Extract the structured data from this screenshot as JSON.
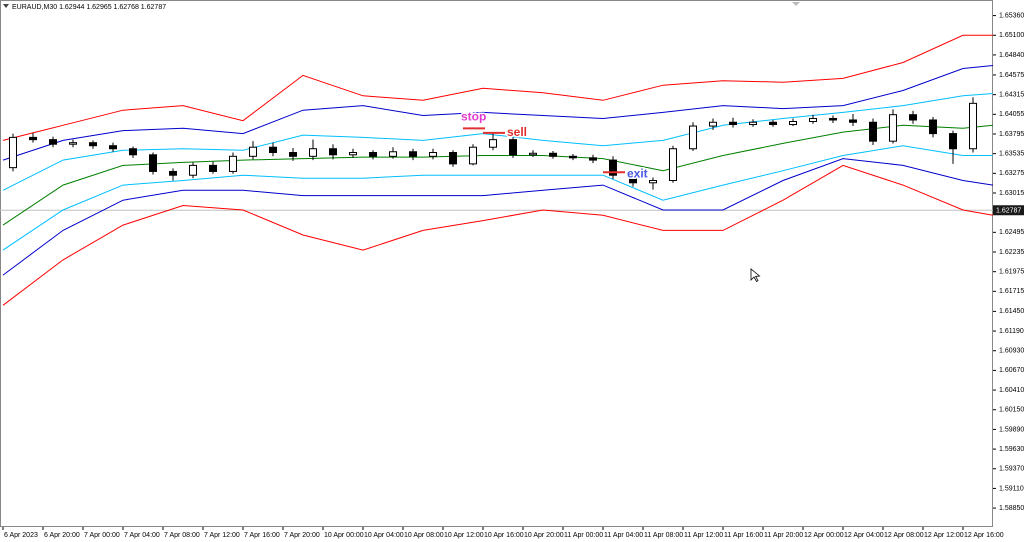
{
  "chart_data": {
    "type": "candlestick",
    "title": "EURAUD,M30  1.62944 1.62965 1.62768 1.62787",
    "xlim": [
      -0.3,
      99
    ],
    "ylim": [
      1.586,
      1.655
    ],
    "xticks": [
      {
        "value": 0,
        "label": "6 Apr 2023"
      },
      {
        "value": 4,
        "label": "6 Apr 20:00"
      },
      {
        "value": 8,
        "label": "7 Apr 00:00"
      },
      {
        "value": 12,
        "label": "7 Apr 04:00"
      },
      {
        "value": 16,
        "label": "7 Apr 08:00"
      },
      {
        "value": 20,
        "label": "7 Apr 12:00"
      },
      {
        "value": 24,
        "label": "7 Apr 16:00"
      },
      {
        "value": 28,
        "label": "7 Apr 20:00"
      },
      {
        "value": 32,
        "label": "10 Apr 00:00"
      },
      {
        "value": 36,
        "label": "10 Apr 04:00"
      },
      {
        "value": 40,
        "label": "10 Apr 08:00"
      },
      {
        "value": 44,
        "label": "10 Apr 12:00"
      },
      {
        "value": 48,
        "label": "10 Apr 16:00"
      },
      {
        "value": 52,
        "label": "10 Apr 20:00"
      },
      {
        "value": 56,
        "label": "11 Apr 00:00"
      },
      {
        "value": 60,
        "label": "11 Apr 04:00"
      },
      {
        "value": 64,
        "label": "11 Apr 08:00"
      },
      {
        "value": 68,
        "label": "11 Apr 12:00"
      },
      {
        "value": 72,
        "label": "11 Apr 16:00"
      },
      {
        "value": 76,
        "label": "11 Apr 20:00"
      },
      {
        "value": 80,
        "label": "12 Apr 00:00"
      },
      {
        "value": 84,
        "label": "12 Apr 04:00"
      },
      {
        "value": 88,
        "label": "12 Apr 08:00"
      },
      {
        "value": 92,
        "label": "12 Apr 12:00"
      },
      {
        "value": 96,
        "label": "12 Apr 16:00"
      }
    ],
    "yticks": [
      {
        "value": 1.6536,
        "label": "1.65360"
      },
      {
        "value": 1.651,
        "label": "1.65100"
      },
      {
        "value": 1.6484,
        "label": "1.64840"
      },
      1.64575,
      1.64315,
      1.64055,
      1.63795,
      1.63535,
      1.63275,
      1.63015,
      1.62495,
      1.62235,
      1.61975,
      1.61715,
      {
        "value": 1.6145,
        "label": "1.61450"
      },
      {
        "value": 1.6119,
        "label": "1.61190"
      },
      {
        "value": 1.6093,
        "label": "1.60930"
      },
      {
        "value": 1.6067,
        "label": "1.60670"
      },
      {
        "value": 1.6041,
        "label": "1.60410"
      },
      {
        "value": 1.6015,
        "label": "1.60150"
      },
      {
        "value": 1.5989,
        "label": "1.59890"
      },
      {
        "value": 1.5963,
        "label": "1.59630"
      },
      {
        "value": 1.5937,
        "label": "1.59370"
      },
      {
        "value": 1.5911,
        "label": "1.59110"
      },
      {
        "value": 1.5885,
        "label": "1.58850"
      }
    ],
    "current_price": 1.62787,
    "candles": {
      "bull_color": "#ffffff",
      "bear_color": "#000000",
      "x": [
        1,
        3,
        5,
        7,
        9,
        11,
        13,
        15,
        17,
        19,
        21,
        23,
        25,
        27,
        29,
        31,
        33,
        35,
        37,
        39,
        41,
        43,
        45,
        47,
        49,
        51,
        53,
        55,
        57,
        59,
        61,
        63,
        65,
        67,
        69,
        71,
        73,
        75,
        77,
        79,
        81,
        83,
        85,
        87,
        89,
        91,
        93,
        95,
        97
      ],
      "open": [
        1.6335,
        1.6375,
        1.6372,
        1.6366,
        1.6368,
        1.6364,
        1.636,
        1.6352,
        1.633,
        1.6325,
        1.6338,
        1.633,
        1.635,
        1.6362,
        1.6355,
        1.635,
        1.636,
        1.6352,
        1.6355,
        1.635,
        1.6356,
        1.635,
        1.6355,
        1.634,
        1.6362,
        1.6372,
        1.6352,
        1.6354,
        1.635,
        1.6348,
        1.6345,
        1.6325,
        1.6315,
        1.6318,
        1.636,
        1.639,
        1.6395,
        1.6392,
        1.6395,
        1.6392,
        1.6396,
        1.64,
        1.6398,
        1.6395,
        1.637,
        1.6405,
        1.6398,
        1.638,
        1.636
      ],
      "high": [
        1.638,
        1.6381,
        1.6376,
        1.6372,
        1.6371,
        1.6368,
        1.6363,
        1.6355,
        1.6334,
        1.6342,
        1.6343,
        1.6355,
        1.637,
        1.6368,
        1.6361,
        1.6372,
        1.6366,
        1.636,
        1.6358,
        1.6362,
        1.636,
        1.636,
        1.6358,
        1.6366,
        1.6382,
        1.6375,
        1.6358,
        1.6357,
        1.6353,
        1.6352,
        1.635,
        1.6328,
        1.6322,
        1.6364,
        1.6395,
        1.64,
        1.6401,
        1.6399,
        1.6398,
        1.64,
        1.6405,
        1.6404,
        1.6406,
        1.64,
        1.6412,
        1.641,
        1.6402,
        1.6384,
        1.6428
      ],
      "low": [
        1.633,
        1.6368,
        1.6362,
        1.6362,
        1.636,
        1.6356,
        1.6348,
        1.6326,
        1.6318,
        1.6321,
        1.6327,
        1.6327,
        1.6346,
        1.635,
        1.6344,
        1.6345,
        1.6346,
        1.6348,
        1.6346,
        1.6347,
        1.6345,
        1.6346,
        1.6336,
        1.6338,
        1.6358,
        1.6348,
        1.6349,
        1.6347,
        1.6345,
        1.6341,
        1.632,
        1.631,
        1.6306,
        1.6315,
        1.6357,
        1.6385,
        1.6388,
        1.6389,
        1.6389,
        1.639,
        1.6393,
        1.6394,
        1.639,
        1.6365,
        1.6367,
        1.6393,
        1.6375,
        1.634,
        1.6355
      ],
      "close": [
        1.6375,
        1.6372,
        1.6366,
        1.6368,
        1.6364,
        1.636,
        1.6352,
        1.633,
        1.6325,
        1.6338,
        1.633,
        1.635,
        1.6362,
        1.6355,
        1.635,
        1.636,
        1.6352,
        1.6355,
        1.635,
        1.6356,
        1.635,
        1.6355,
        1.634,
        1.6362,
        1.6372,
        1.6352,
        1.6354,
        1.635,
        1.6348,
        1.6345,
        1.6325,
        1.6315,
        1.6318,
        1.636,
        1.639,
        1.6395,
        1.6392,
        1.6395,
        1.6392,
        1.6396,
        1.64,
        1.6398,
        1.6395,
        1.637,
        1.6405,
        1.6398,
        1.638,
        1.636,
        1.642
      ]
    },
    "band_x": [
      0,
      6,
      12,
      18,
      24,
      30,
      36,
      42,
      48,
      54,
      60,
      66,
      72,
      78,
      84,
      90,
      96,
      99
    ],
    "bands": [
      {
        "color": "#ff0000",
        "values": [
          1.6371,
          1.6391,
          1.6411,
          1.6417,
          1.6397,
          1.6457,
          1.643,
          1.6424,
          1.644,
          1.6434,
          1.6424,
          1.6444,
          1.645,
          1.6448,
          1.6453,
          1.6474,
          1.651,
          1.651
        ]
      },
      {
        "color": "#0000cd",
        "values": [
          1.6345,
          1.6371,
          1.6384,
          1.6387,
          1.638,
          1.6411,
          1.6417,
          1.6404,
          1.6408,
          1.6404,
          1.64,
          1.6408,
          1.6417,
          1.6413,
          1.6417,
          1.6437,
          1.6466,
          1.647
        ]
      },
      {
        "color": "#00bfff",
        "values": [
          1.6305,
          1.6345,
          1.6358,
          1.636,
          1.6358,
          1.6378,
          1.6375,
          1.6371,
          1.638,
          1.6371,
          1.6364,
          1.6371,
          1.6391,
          1.64,
          1.6408,
          1.6417,
          1.643,
          1.6433
        ]
      },
      {
        "color": "#008000",
        "values": [
          1.6259,
          1.6312,
          1.6338,
          1.6342,
          1.6345,
          1.6347,
          1.6349,
          1.6349,
          1.6351,
          1.6351,
          1.6347,
          1.6331,
          1.6351,
          1.6367,
          1.6382,
          1.6391,
          1.6387,
          1.6391
        ]
      },
      {
        "color": "#00bfff",
        "values": [
          1.6226,
          1.6279,
          1.6312,
          1.6318,
          1.6325,
          1.6321,
          1.6321,
          1.6325,
          1.6325,
          1.6325,
          1.6325,
          1.6292,
          1.6312,
          1.6331,
          1.6351,
          1.6364,
          1.6351,
          1.6351
        ]
      },
      {
        "color": "#0000cd",
        "values": [
          1.6193,
          1.6252,
          1.6292,
          1.6305,
          1.6305,
          1.6298,
          1.6298,
          1.6298,
          1.6298,
          1.6305,
          1.6312,
          1.6279,
          1.6279,
          1.6318,
          1.6347,
          1.6338,
          1.6318,
          1.6312
        ]
      },
      {
        "color": "#ff0000",
        "values": [
          1.6153,
          1.6213,
          1.6259,
          1.6285,
          1.6279,
          1.6246,
          1.6226,
          1.6252,
          1.6265,
          1.6279,
          1.6272,
          1.6252,
          1.6252,
          1.6292,
          1.6338,
          1.6312,
          1.6279,
          1.6272
        ]
      }
    ],
    "annotations": [
      {
        "text": "stop",
        "color": "#e23ccd",
        "x": 47,
        "y": 1.6387
      },
      {
        "text": "sell",
        "color": "#e03030",
        "x": 49,
        "y": 1.6381
      },
      {
        "text": "exit",
        "color": "#4a5ae0",
        "x": 61,
        "y": 1.6329
      }
    ]
  }
}
